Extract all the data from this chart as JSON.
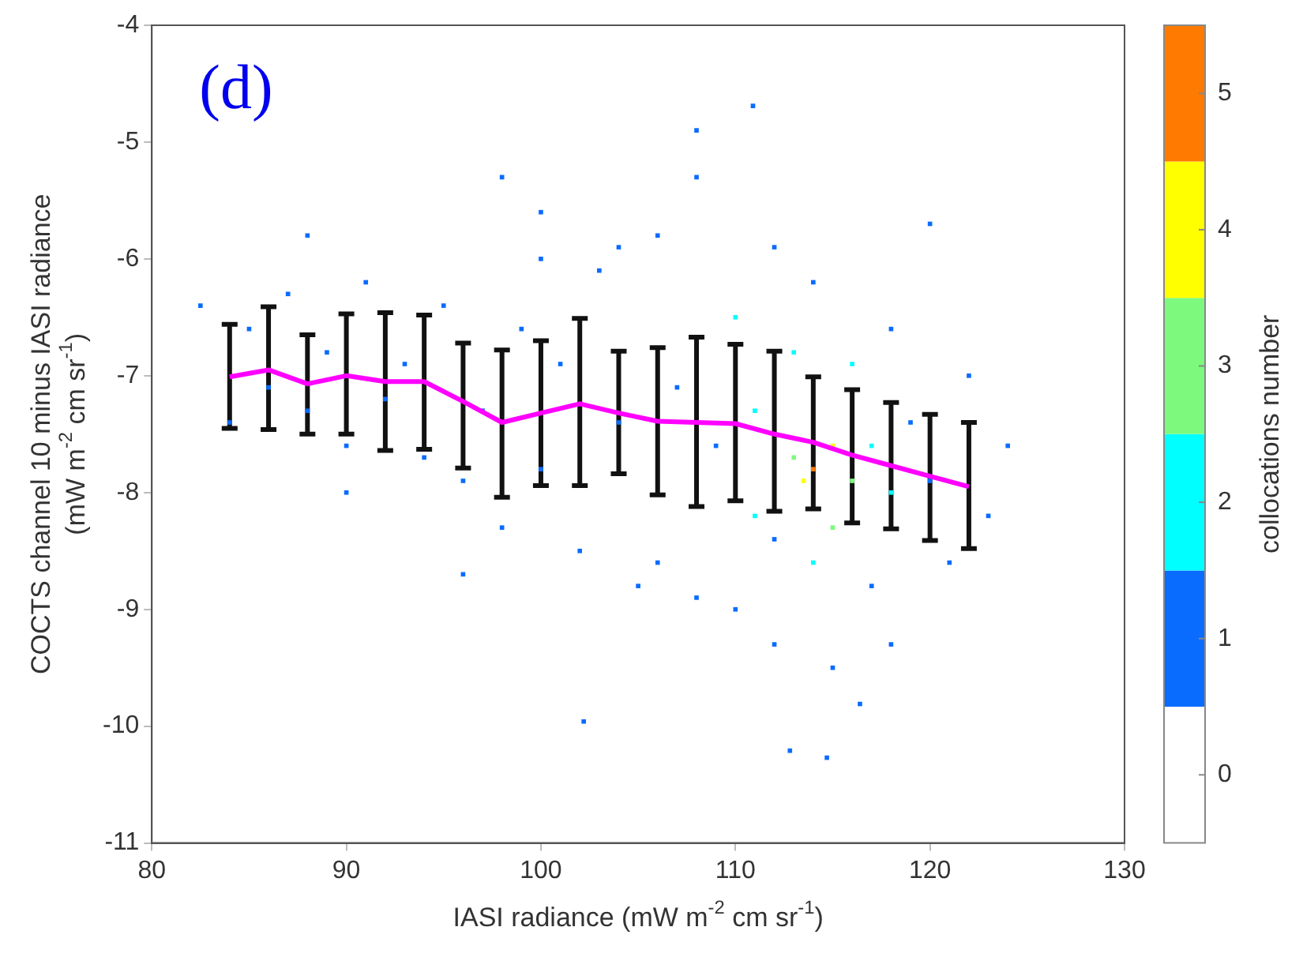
{
  "chart_data": {
    "type": "scatter",
    "xlabel": "IASI radiance (mW m$^{-2}$ cm sr$^{-1}$)",
    "ylabel": "COCTS channel 10 minus IASI radiance\n(mW m$^{-2}$ cm sr$^{-1}$)",
    "clabel": "collocations number",
    "annotations": [
      "(d)"
    ],
    "xlim": [
      80,
      130
    ],
    "xticks": [
      80,
      90,
      100,
      110,
      120,
      130
    ],
    "ylim": [
      -11,
      -4
    ],
    "yticks": [
      -11,
      -10,
      -9,
      -8,
      -7,
      -6,
      -5,
      -4
    ],
    "clim": [
      -0.5,
      5.5
    ],
    "cticks": [
      0,
      1,
      2,
      3,
      4,
      5
    ],
    "grid": false,
    "legend": false,
    "series": [
      {
        "marker": "square",
        "colors": [
          "#0a6cff",
          "#0a6cff",
          "#0a6cff",
          "#0a6cff",
          "#0a6cff",
          "#0a6cff",
          "#0a6cff",
          "#0a6cff",
          "#0a6cff",
          "#0a6cff",
          "#0a6cff",
          "#0a6cff",
          "#0a6cff",
          "#0a6cff",
          "#0a6cff",
          "#0a6cff",
          "#0a6cff",
          "#0a6cff",
          "#0a6cff",
          "#0a6cff",
          "#0a6cff",
          "#0a6cff",
          "#0a6cff",
          "#0a6cff",
          "#0a6cff",
          "#0a6cff",
          "#0a6cff",
          "#0a6cff",
          "#0a6cff",
          "#0a6cff",
          "#00ffff",
          "#0a6cff",
          "#00ffff",
          "#00ffff",
          "#0a6cff",
          "#0a6cff",
          "#0a6cff",
          "#7dfa7d",
          "#00ffff",
          "#ffff00",
          "#ff7a00",
          "#00ffff",
          "#0a6cff",
          "#0a6cff",
          "#ffff00",
          "#7dfa7d",
          "#0a6cff",
          "#7dfa7d",
          "#00ffff",
          "#0a6cff",
          "#00ffff",
          "#0a6cff",
          "#00ffff",
          "#0a6cff",
          "#0a6cff",
          "#0a6cff",
          "#0a6cff",
          "#0a6cff",
          "#0a6cff",
          "#0a6cff",
          "#0a6cff",
          "#0a6cff",
          "#0a6cff",
          "#0a6cff",
          "#0a6cff",
          "#0a6cff",
          "#0a6cff",
          "#0a6cff",
          "#0a6cff",
          "#0a6cff",
          "#0a6cff",
          "#0a6cff"
        ],
        "x": [
          82.5,
          84,
          85,
          86,
          87,
          88,
          89,
          90,
          91,
          92,
          93,
          94,
          95,
          96,
          97,
          98,
          99,
          100,
          100,
          101,
          102,
          102.2,
          103,
          104,
          105,
          106,
          107,
          108,
          108,
          109,
          110,
          110.9,
          111,
          111,
          112,
          112,
          112.8,
          113,
          113,
          113.5,
          114,
          114,
          114,
          114.7,
          115,
          115,
          115,
          116,
          116,
          116.4,
          117,
          117,
          118,
          118,
          119,
          120,
          121,
          122,
          123,
          124,
          96,
          98,
          104,
          106,
          108,
          110,
          112,
          118,
          120,
          100,
          90,
          88
        ],
        "values": [
          -6.4,
          -7.4,
          -6.6,
          -7.1,
          -6.3,
          -7.3,
          -6.8,
          -7.6,
          -6.2,
          -7.2,
          -6.9,
          -7.7,
          -6.4,
          -7.9,
          -7.3,
          -8.3,
          -6.6,
          -7.8,
          -5.6,
          -6.9,
          -8.5,
          -9.96,
          -6.1,
          -7.4,
          -8.8,
          -5.8,
          -7.1,
          -8.9,
          -5.3,
          -7.6,
          -6.5,
          -4.69,
          -8.2,
          -7.3,
          -9.3,
          -5.9,
          -10.21,
          -7.7,
          -6.8,
          -7.9,
          -7.8,
          -8.6,
          -6.2,
          -10.27,
          -7.6,
          -8.3,
          -9.5,
          -7.9,
          -6.9,
          -9.81,
          -7.6,
          -8.8,
          -8.0,
          -6.6,
          -7.4,
          -7.9,
          -8.6,
          -7.0,
          -8.2,
          -7.6,
          -8.7,
          -5.3,
          -5.9,
          -8.6,
          -4.9,
          -9.0,
          -8.4,
          -9.3,
          -5.7,
          -6.0,
          -8.0,
          -5.8
        ]
      },
      {
        "type": "line",
        "color": "#ff00ff",
        "marker": "none",
        "x": [
          84,
          86,
          88,
          90,
          92,
          94,
          96,
          98,
          100,
          102,
          104,
          106,
          108,
          110,
          112,
          114,
          116,
          118,
          120,
          122
        ],
        "values": [
          -7.01,
          -6.95,
          -7.07,
          -7.0,
          -7.05,
          -7.05,
          -7.22,
          -7.4,
          -7.32,
          -7.24,
          -7.32,
          -7.39,
          -7.4,
          -7.41,
          -7.5,
          -7.57,
          -7.68,
          -7.77,
          -7.86,
          -7.95
        ],
        "errors": [
          [
            -7.45,
            -6.56
          ],
          [
            -7.46,
            -6.41
          ],
          [
            -7.5,
            -6.65
          ],
          [
            -7.5,
            -6.47
          ],
          [
            -7.64,
            -6.46
          ],
          [
            -7.63,
            -6.48
          ],
          [
            -7.79,
            -6.72
          ],
          [
            -8.04,
            -6.78
          ],
          [
            -7.94,
            -6.7
          ],
          [
            -7.94,
            -6.51
          ],
          [
            -7.84,
            -6.79
          ],
          [
            -8.02,
            -6.76
          ],
          [
            -8.12,
            -6.67
          ],
          [
            -8.07,
            -6.73
          ],
          [
            -8.16,
            -6.79
          ],
          [
            -8.14,
            -7.01
          ],
          [
            -8.26,
            -7.12
          ],
          [
            -8.31,
            -7.23
          ],
          [
            -8.41,
            -7.33
          ],
          [
            -8.48,
            -7.4
          ]
        ]
      }
    ]
  }
}
